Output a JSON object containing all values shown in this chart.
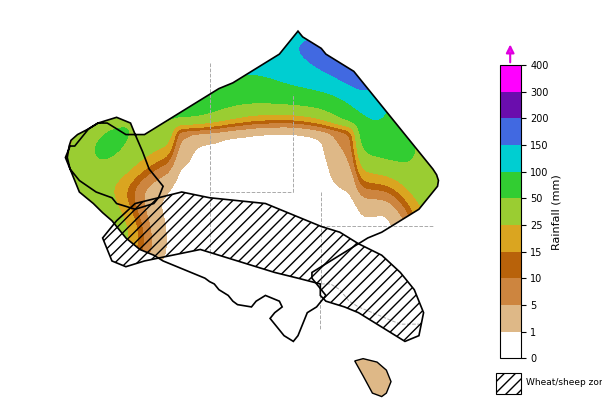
{
  "title": "",
  "colorbar_label": "Rainfall (mm)",
  "colorbar_levels": [
    0,
    1,
    5,
    10,
    15,
    25,
    50,
    100,
    150,
    200,
    300,
    400
  ],
  "colorbar_colors": [
    "#ffffff",
    "#deb887",
    "#cd853f",
    "#b8620a",
    "#daa520",
    "#9acd32",
    "#32cd32",
    "#00ced1",
    "#4169e1",
    "#6a0dad",
    "#da00da",
    "#ff00ff"
  ],
  "wheat_sheep_hatch": "///",
  "background_color": "#ffffff",
  "figsize": [
    6.02,
    4.07
  ],
  "dpi": 100
}
